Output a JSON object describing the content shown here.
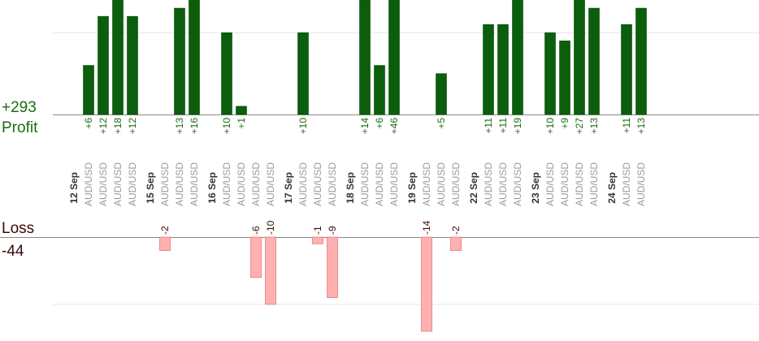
{
  "summary": {
    "profit_total": "+293",
    "profit_label": "Profit",
    "loss_label": "Loss",
    "loss_total": "-44"
  },
  "colors": {
    "profit_bar": "#0b5e0b",
    "profit_bar_edge": "#084a08",
    "profit_text": "#1a6b12",
    "loss_bar": "#ffb0b0",
    "loss_bar_edge": "#e77a7a",
    "loss_text": "#3a0a0a",
    "axis": "#888888",
    "grid": "#e6e6e6",
    "pair_text": "#9a9a9a",
    "date_text": "#333333"
  },
  "chart_data": {
    "type": "bar",
    "profit_ylim": [
      0,
      14
    ],
    "loss_ylim": [
      -14,
      0
    ],
    "days": [
      {
        "date": "12 Sep",
        "trades": [
          {
            "pair": "AUD/USD",
            "value": 6,
            "label": "+6"
          },
          {
            "pair": "AUD/USD",
            "value": 12,
            "label": "+12"
          },
          {
            "pair": "AUD/USD",
            "value": 18,
            "label": "+18"
          },
          {
            "pair": "AUD/USD",
            "value": 12,
            "label": "+12"
          }
        ]
      },
      {
        "date": "15 Sep",
        "trades": [
          {
            "pair": "AUD/USD",
            "value": -2,
            "label": "-2"
          },
          {
            "pair": "AUD/USD",
            "value": 13,
            "label": "+13"
          },
          {
            "pair": "AUD/USD",
            "value": 16,
            "label": "+16"
          }
        ]
      },
      {
        "date": "16 Sep",
        "trades": [
          {
            "pair": "AUD/USD",
            "value": 10,
            "label": "+10"
          },
          {
            "pair": "AUD/USD",
            "value": 1,
            "label": "+1"
          },
          {
            "pair": "AUD/USD",
            "value": -6,
            "label": "-6"
          },
          {
            "pair": "AUD/USD",
            "value": -10,
            "label": "-10"
          }
        ]
      },
      {
        "date": "17 Sep",
        "trades": [
          {
            "pair": "AUD/USD",
            "value": 10,
            "label": "+10"
          },
          {
            "pair": "AUD/USD",
            "value": -1,
            "label": "-1"
          },
          {
            "pair": "AUD/USD",
            "value": -9,
            "label": "-9"
          }
        ]
      },
      {
        "date": "18 Sep",
        "trades": [
          {
            "pair": "AUD/USD",
            "value": 14,
            "label": "+14"
          },
          {
            "pair": "AUD/USD",
            "value": 6,
            "label": "+6"
          },
          {
            "pair": "AUD/USD",
            "value": 46,
            "label": "+46"
          }
        ]
      },
      {
        "date": "19 Sep",
        "trades": [
          {
            "pair": "AUD/USD",
            "value": -14,
            "label": "-14"
          },
          {
            "pair": "AUD/USD",
            "value": 5,
            "label": "+5"
          },
          {
            "pair": "AUD/USD",
            "value": -2,
            "label": "-2"
          }
        ]
      },
      {
        "date": "22 Sep",
        "trades": [
          {
            "pair": "AUD/USD",
            "value": 11,
            "label": "+11"
          },
          {
            "pair": "AUD/USD",
            "value": 11,
            "label": "+11"
          },
          {
            "pair": "AUD/USD",
            "value": 19,
            "label": "+19"
          }
        ]
      },
      {
        "date": "23 Sep",
        "trades": [
          {
            "pair": "AUD/USD",
            "value": 10,
            "label": "+10"
          },
          {
            "pair": "AUD/USD",
            "value": 9,
            "label": "+9"
          },
          {
            "pair": "AUD/USD",
            "value": 27,
            "label": "+27"
          },
          {
            "pair": "AUD/USD",
            "value": 13,
            "label": "+13"
          }
        ]
      },
      {
        "date": "24 Sep",
        "trades": [
          {
            "pair": "AUD/USD",
            "value": 11,
            "label": "+11"
          },
          {
            "pair": "AUD/USD",
            "value": 13,
            "label": "+13"
          }
        ]
      }
    ]
  }
}
